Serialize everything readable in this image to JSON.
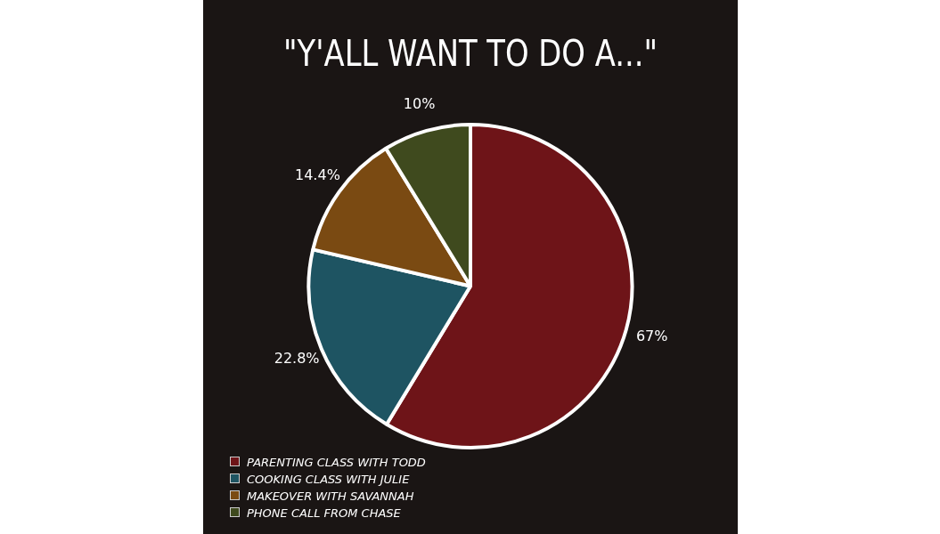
{
  "chart_data": {
    "type": "pie",
    "title": "\"Y'ALL WANT TO DO A...\"",
    "categories": [
      "PARENTING CLASS WITH TODD",
      "COOKING CLASS WITH JULIE",
      "MAKEOVER WITH SAVANNAH",
      "PHONE CALL FROM CHASE"
    ],
    "values": [
      67,
      22.8,
      14.4,
      10
    ],
    "colors": [
      "#6e1418",
      "#1e5462",
      "#7a4a12",
      "#3f4a1e"
    ],
    "value_labels": [
      "67%",
      "22.8%",
      "14.4%",
      "10%"
    ],
    "legend": "bottom left"
  }
}
